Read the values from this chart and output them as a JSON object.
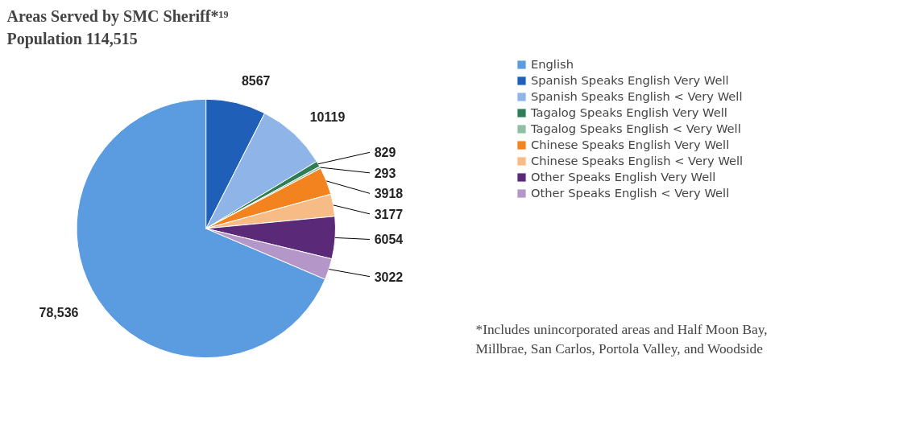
{
  "chart_data": {
    "type": "pie",
    "title": "Areas Served by SMC Sheriff*¹⁹",
    "subtitle": "Population 114,515",
    "categories": [
      "English",
      "Spanish Speaks English Very Well",
      "Spanish Speaks English < Very Well",
      "Tagalog Speaks English Very Well",
      "Tagalog Speaks English < Very Well",
      "Chinese Speaks English Very Well",
      "Chinese Speaks English < Very Well",
      "Other Speaks English Very Well",
      "Other Speaks English < Very Well"
    ],
    "values": [
      78536,
      8567,
      10119,
      829,
      293,
      3918,
      3177,
      6054,
      3022
    ],
    "value_labels": [
      "78,536",
      "8567",
      "10119",
      "829",
      "293",
      "3918",
      "3177",
      "6054",
      "3022"
    ],
    "colors": [
      "#5b9be0",
      "#1f5fb8",
      "#8fb4e8",
      "#2e7d55",
      "#8fc0a6",
      "#f2831f",
      "#f7bb85",
      "#5a2a78",
      "#b497c8"
    ],
    "legend": "right",
    "annotations": [
      "*Includes unincorporated areas and Half Moon Bay, Millbrae, San Carlos, Portola Valley, and Woodside"
    ]
  }
}
